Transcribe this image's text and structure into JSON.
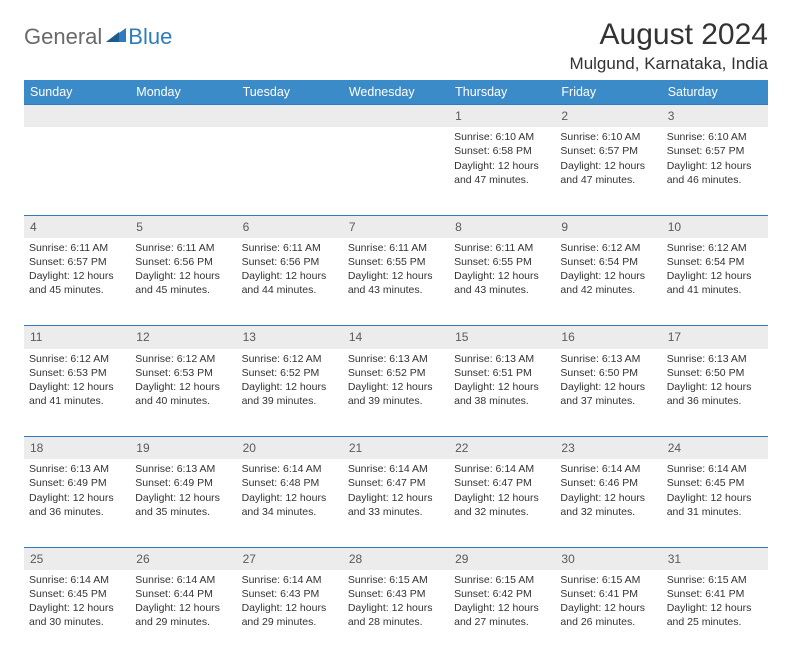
{
  "logo": {
    "word1": "General",
    "word2": "Blue",
    "icon_color": "#2f7bbf"
  },
  "title": "August 2024",
  "location": "Mulgund, Karnataka, India",
  "colors": {
    "header_bg": "#3b8bc8",
    "header_text": "#ffffff",
    "daynum_bg": "#ececec",
    "border": "#2f7bbf",
    "text": "#333333"
  },
  "day_headers": [
    "Sunday",
    "Monday",
    "Tuesday",
    "Wednesday",
    "Thursday",
    "Friday",
    "Saturday"
  ],
  "weeks": [
    [
      null,
      null,
      null,
      null,
      {
        "n": "1",
        "sr": "6:10 AM",
        "ss": "6:58 PM",
        "dl": "12 hours and 47 minutes."
      },
      {
        "n": "2",
        "sr": "6:10 AM",
        "ss": "6:57 PM",
        "dl": "12 hours and 47 minutes."
      },
      {
        "n": "3",
        "sr": "6:10 AM",
        "ss": "6:57 PM",
        "dl": "12 hours and 46 minutes."
      }
    ],
    [
      {
        "n": "4",
        "sr": "6:11 AM",
        "ss": "6:57 PM",
        "dl": "12 hours and 45 minutes."
      },
      {
        "n": "5",
        "sr": "6:11 AM",
        "ss": "6:56 PM",
        "dl": "12 hours and 45 minutes."
      },
      {
        "n": "6",
        "sr": "6:11 AM",
        "ss": "6:56 PM",
        "dl": "12 hours and 44 minutes."
      },
      {
        "n": "7",
        "sr": "6:11 AM",
        "ss": "6:55 PM",
        "dl": "12 hours and 43 minutes."
      },
      {
        "n": "8",
        "sr": "6:11 AM",
        "ss": "6:55 PM",
        "dl": "12 hours and 43 minutes."
      },
      {
        "n": "9",
        "sr": "6:12 AM",
        "ss": "6:54 PM",
        "dl": "12 hours and 42 minutes."
      },
      {
        "n": "10",
        "sr": "6:12 AM",
        "ss": "6:54 PM",
        "dl": "12 hours and 41 minutes."
      }
    ],
    [
      {
        "n": "11",
        "sr": "6:12 AM",
        "ss": "6:53 PM",
        "dl": "12 hours and 41 minutes."
      },
      {
        "n": "12",
        "sr": "6:12 AM",
        "ss": "6:53 PM",
        "dl": "12 hours and 40 minutes."
      },
      {
        "n": "13",
        "sr": "6:12 AM",
        "ss": "6:52 PM",
        "dl": "12 hours and 39 minutes."
      },
      {
        "n": "14",
        "sr": "6:13 AM",
        "ss": "6:52 PM",
        "dl": "12 hours and 39 minutes."
      },
      {
        "n": "15",
        "sr": "6:13 AM",
        "ss": "6:51 PM",
        "dl": "12 hours and 38 minutes."
      },
      {
        "n": "16",
        "sr": "6:13 AM",
        "ss": "6:50 PM",
        "dl": "12 hours and 37 minutes."
      },
      {
        "n": "17",
        "sr": "6:13 AM",
        "ss": "6:50 PM",
        "dl": "12 hours and 36 minutes."
      }
    ],
    [
      {
        "n": "18",
        "sr": "6:13 AM",
        "ss": "6:49 PM",
        "dl": "12 hours and 36 minutes."
      },
      {
        "n": "19",
        "sr": "6:13 AM",
        "ss": "6:49 PM",
        "dl": "12 hours and 35 minutes."
      },
      {
        "n": "20",
        "sr": "6:14 AM",
        "ss": "6:48 PM",
        "dl": "12 hours and 34 minutes."
      },
      {
        "n": "21",
        "sr": "6:14 AM",
        "ss": "6:47 PM",
        "dl": "12 hours and 33 minutes."
      },
      {
        "n": "22",
        "sr": "6:14 AM",
        "ss": "6:47 PM",
        "dl": "12 hours and 32 minutes."
      },
      {
        "n": "23",
        "sr": "6:14 AM",
        "ss": "6:46 PM",
        "dl": "12 hours and 32 minutes."
      },
      {
        "n": "24",
        "sr": "6:14 AM",
        "ss": "6:45 PM",
        "dl": "12 hours and 31 minutes."
      }
    ],
    [
      {
        "n": "25",
        "sr": "6:14 AM",
        "ss": "6:45 PM",
        "dl": "12 hours and 30 minutes."
      },
      {
        "n": "26",
        "sr": "6:14 AM",
        "ss": "6:44 PM",
        "dl": "12 hours and 29 minutes."
      },
      {
        "n": "27",
        "sr": "6:14 AM",
        "ss": "6:43 PM",
        "dl": "12 hours and 29 minutes."
      },
      {
        "n": "28",
        "sr": "6:15 AM",
        "ss": "6:43 PM",
        "dl": "12 hours and 28 minutes."
      },
      {
        "n": "29",
        "sr": "6:15 AM",
        "ss": "6:42 PM",
        "dl": "12 hours and 27 minutes."
      },
      {
        "n": "30",
        "sr": "6:15 AM",
        "ss": "6:41 PM",
        "dl": "12 hours and 26 minutes."
      },
      {
        "n": "31",
        "sr": "6:15 AM",
        "ss": "6:41 PM",
        "dl": "12 hours and 25 minutes."
      }
    ]
  ],
  "labels": {
    "sunrise": "Sunrise:",
    "sunset": "Sunset:",
    "daylight": "Daylight:"
  }
}
